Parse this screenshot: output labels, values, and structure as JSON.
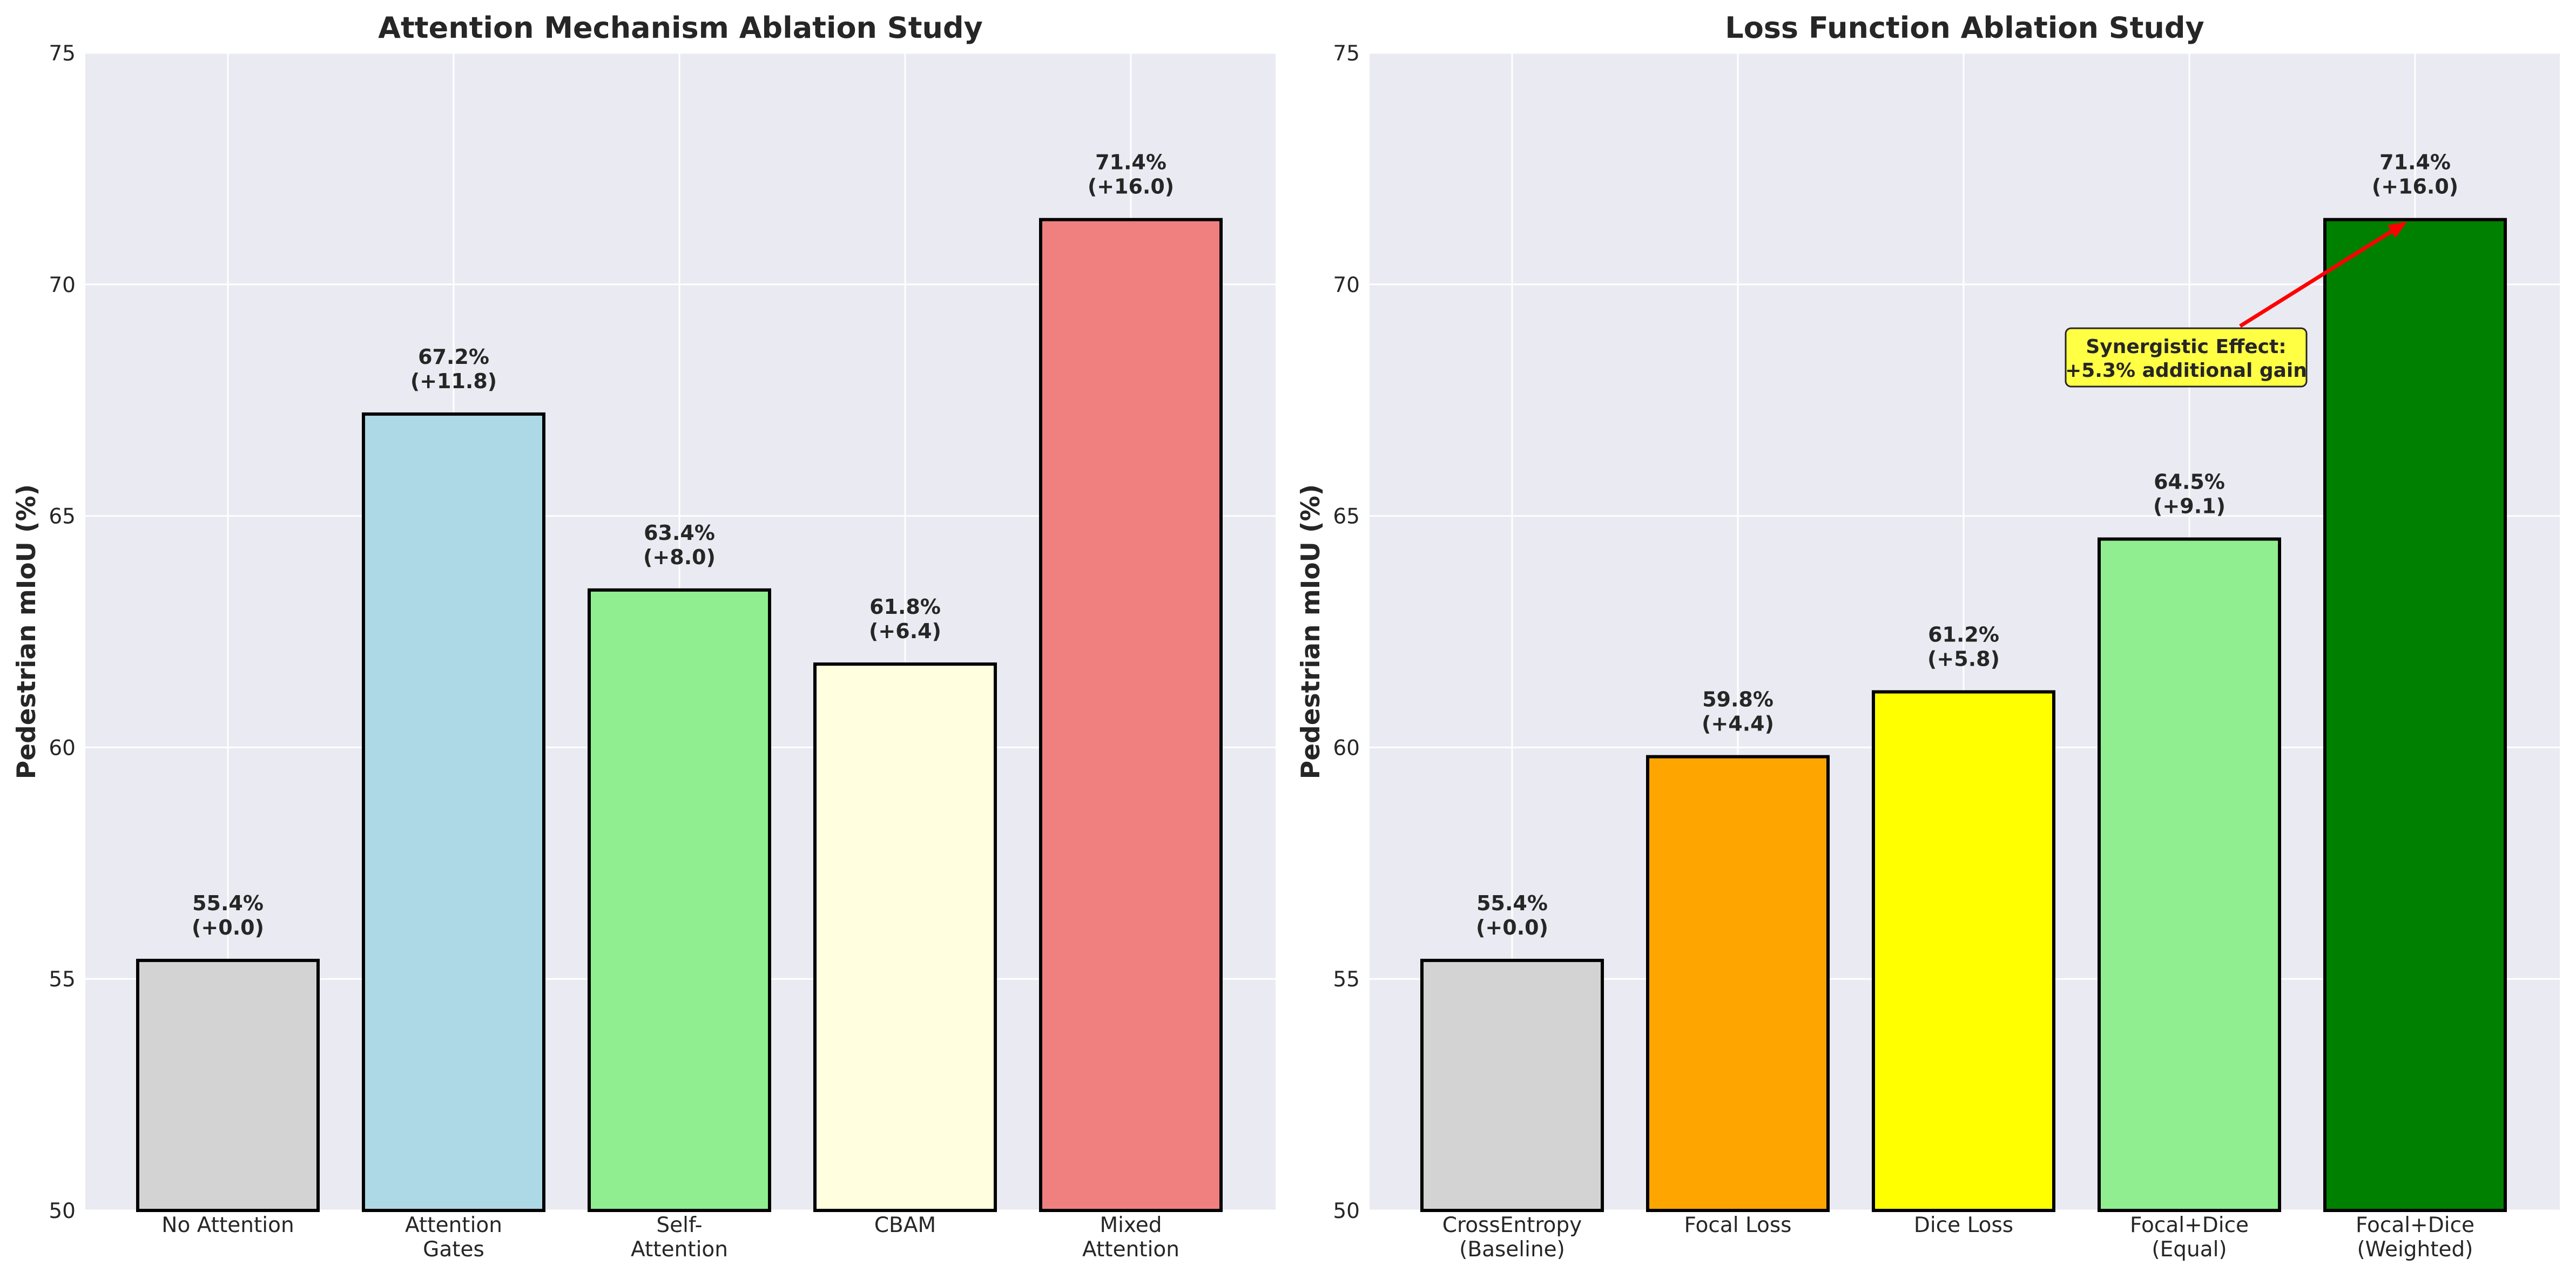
{
  "chart_data": [
    {
      "type": "bar",
      "title": "Attention Mechanism Ablation Study",
      "xlabel": "",
      "ylabel": "Pedestrian mIoU (%)",
      "ylim": [
        50,
        75
      ],
      "yticks": [
        "50",
        "55",
        "60",
        "65",
        "70",
        "75"
      ],
      "grid": true,
      "categories": [
        [
          "No Attention"
        ],
        [
          "Attention",
          "Gates"
        ],
        [
          "Self-",
          "Attention"
        ],
        [
          "CBAM"
        ],
        [
          "Mixed",
          "Attention"
        ]
      ],
      "values": [
        55.4,
        67.2,
        63.4,
        61.8,
        71.4
      ],
      "labels": [
        [
          "55.4%",
          "(+0.0)"
        ],
        [
          "67.2%",
          "(+11.8)"
        ],
        [
          "63.4%",
          "(+8.0)"
        ],
        [
          "61.8%",
          "(+6.4)"
        ],
        [
          "71.4%",
          "(+16.0)"
        ]
      ],
      "colors": [
        "#d3d3d3",
        "#add8e6",
        "#90ee90",
        "#ffffe0",
        "#f08080"
      ]
    },
    {
      "type": "bar",
      "title": "Loss Function Ablation Study",
      "xlabel": "",
      "ylabel": "Pedestrian mIoU (%)",
      "ylim": [
        50,
        75
      ],
      "yticks": [
        "50",
        "55",
        "60",
        "65",
        "70",
        "75"
      ],
      "grid": true,
      "categories": [
        [
          "CrossEntropy",
          "(Baseline)"
        ],
        [
          "Focal Loss"
        ],
        [
          "Dice Loss"
        ],
        [
          "Focal+Dice",
          "(Equal)"
        ],
        [
          "Focal+Dice",
          "(Weighted)"
        ]
      ],
      "values": [
        55.4,
        59.8,
        61.2,
        64.5,
        71.4
      ],
      "labels": [
        [
          "55.4%",
          "(+0.0)"
        ],
        [
          "59.8%",
          "(+4.4)"
        ],
        [
          "61.2%",
          "(+5.8)"
        ],
        [
          "64.5%",
          "(+9.1)"
        ],
        [
          "71.4%",
          "(+16.0)"
        ]
      ],
      "colors": [
        "#d3d3d3",
        "#ffa500",
        "#ffff00",
        "#90ee90",
        "#008000"
      ],
      "annotation": {
        "text": [
          "Synergistic Effect:",
          "+5.3% additional gain"
        ],
        "target_bar": 4,
        "box_color": "#ffff44",
        "arrow_color": "#ff0000"
      }
    }
  ]
}
